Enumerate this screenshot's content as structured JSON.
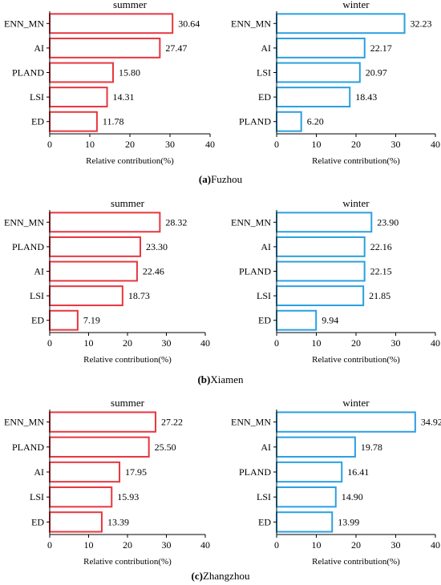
{
  "chart_data": [
    {
      "type": "bar",
      "orientation": "horizontal",
      "title": "summer",
      "xlabel": "Relative contribution(%)",
      "xlim": [
        0,
        40
      ],
      "xticks": [
        0,
        10,
        20,
        30,
        40
      ],
      "color": "#e8363f",
      "categories": [
        "ENN_MN",
        "AI",
        "PLAND",
        "LSI",
        "ED"
      ],
      "values": [
        30.64,
        27.47,
        15.8,
        14.31,
        11.78
      ],
      "labels": [
        "30.64",
        "27.47",
        "15.80",
        "14.31",
        "11.78"
      ]
    },
    {
      "type": "bar",
      "orientation": "horizontal",
      "title": "winter",
      "xlabel": "Relative contribution(%)",
      "xlim": [
        0,
        40
      ],
      "xticks": [
        0,
        10,
        20,
        30,
        40
      ],
      "color": "#2b9fe0",
      "categories": [
        "ENN_MN",
        "AI",
        "LSI",
        "ED",
        "PLAND"
      ],
      "values": [
        32.23,
        22.17,
        20.97,
        18.43,
        6.2
      ],
      "labels": [
        "32.23",
        "22.17",
        "20.97",
        "18.43",
        "6.20"
      ]
    },
    {
      "type": "bar",
      "orientation": "horizontal",
      "title": "summer",
      "xlabel": "Relative contribution(%)",
      "xlim": [
        0,
        40
      ],
      "xticks": [
        0,
        10,
        20,
        30,
        40
      ],
      "color": "#e8363f",
      "categories": [
        "ENN_MN",
        "PLAND",
        "AI",
        "LSI",
        "ED"
      ],
      "values": [
        28.32,
        23.3,
        22.46,
        18.73,
        7.19
      ],
      "labels": [
        "28.32",
        "23.30",
        "22.46",
        "18.73",
        "7.19"
      ]
    },
    {
      "type": "bar",
      "orientation": "horizontal",
      "title": "winter",
      "xlabel": "Relative contribution(%)",
      "xlim": [
        0,
        40
      ],
      "xticks": [
        0,
        10,
        20,
        30,
        40
      ],
      "color": "#2b9fe0",
      "categories": [
        "ENN_MN",
        "AI",
        "PLAND",
        "LSI",
        "ED"
      ],
      "values": [
        23.9,
        22.16,
        22.15,
        21.85,
        9.94
      ],
      "labels": [
        "23.90",
        "22.16",
        "22.15",
        "21.85",
        "9.94"
      ]
    },
    {
      "type": "bar",
      "orientation": "horizontal",
      "title": "summer",
      "xlabel": "Relative contribution(%)",
      "xlim": [
        0,
        40
      ],
      "xticks": [
        0,
        10,
        20,
        30,
        40
      ],
      "color": "#e8363f",
      "categories": [
        "ENN_MN",
        "PLAND",
        "AI",
        "LSI",
        "ED"
      ],
      "values": [
        27.22,
        25.5,
        17.95,
        15.93,
        13.39
      ],
      "labels": [
        "27.22",
        "25.50",
        "17.95",
        "15.93",
        "13.39"
      ]
    },
    {
      "type": "bar",
      "orientation": "horizontal",
      "title": "winter",
      "xlabel": "Relative contribution(%)",
      "xlim": [
        0,
        40
      ],
      "xticks": [
        0,
        10,
        20,
        30,
        40
      ],
      "color": "#2b9fe0",
      "categories": [
        "ENN_MN",
        "AI",
        "PLAND",
        "LSI",
        "ED"
      ],
      "values": [
        34.92,
        19.78,
        16.41,
        14.9,
        13.99
      ],
      "labels": [
        "34.92",
        "19.78",
        "16.41",
        "14.90",
        "13.99"
      ]
    }
  ],
  "captions": [
    {
      "letter": "(a)",
      "name": "Fuzhou"
    },
    {
      "letter": "(b)",
      "name": "Xiamen"
    },
    {
      "letter": "(c)",
      "name": "Zhangzhou"
    }
  ]
}
